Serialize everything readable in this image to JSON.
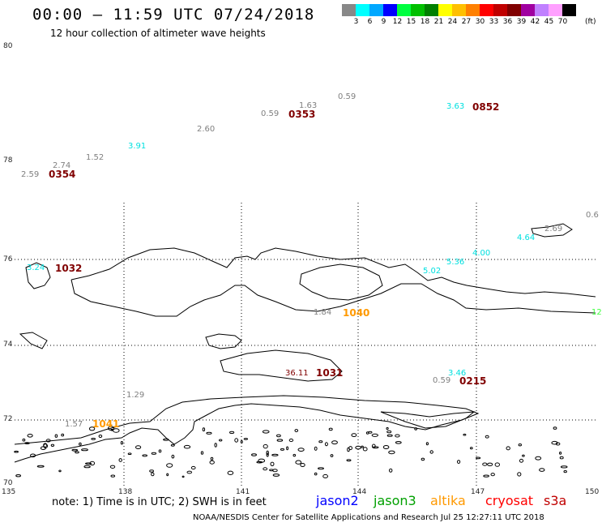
{
  "header": {
    "title": "00:00 – 11:59 UTC 07/24/2018",
    "subtitle": "12 hour collection of altimeter wave heights"
  },
  "scale": {
    "colors": [
      "#888888",
      "#00ffff",
      "#00a8ff",
      "#0000ff",
      "#00ff40",
      "#00c000",
      "#008000",
      "#ffff00",
      "#ffc000",
      "#ff8000",
      "#ff0000",
      "#c00000",
      "#800000",
      "#a000a0",
      "#c080ff",
      "#ffa0ff",
      "#000000"
    ],
    "labels": [
      "3",
      "6",
      "9",
      "12",
      "15",
      "18",
      "21",
      "24",
      "27",
      "30",
      "33",
      "36",
      "39",
      "42",
      "45",
      "70"
    ],
    "unit": "(ft)"
  },
  "axes": {
    "lat_labels": [
      "80",
      "78",
      "76",
      "74",
      "72",
      "70"
    ],
    "lon_labels": [
      "135",
      "138",
      "141",
      "144",
      "147",
      "150"
    ]
  },
  "observations": [
    {
      "value": "2.59",
      "color": "#808080"
    },
    {
      "value": "2.74",
      "color": "#808080"
    },
    {
      "value": "1.52",
      "color": "#808080"
    },
    {
      "value": "3.91",
      "color": "#00e0e0"
    },
    {
      "value": "2.60",
      "color": "#808080"
    },
    {
      "value": "0.59",
      "color": "#808080"
    },
    {
      "value": "1.63",
      "color": "#808080"
    },
    {
      "value": "0.59",
      "color": "#808080"
    },
    {
      "value": "3.63",
      "color": "#00e0e0"
    },
    {
      "value": "0.6",
      "color": "#808080"
    },
    {
      "value": "4.64",
      "color": "#00e0e0"
    },
    {
      "value": "2.69",
      "color": "#808080"
    },
    {
      "value": "4.00",
      "color": "#00e0e0"
    },
    {
      "value": "5.36",
      "color": "#00e0e0"
    },
    {
      "value": "5.02",
      "color": "#00e0e0"
    },
    {
      "value": "3.24",
      "color": "#00e0e0"
    },
    {
      "value": "1.84",
      "color": "#808080"
    },
    {
      "value": "12",
      "color": "#40ff40"
    },
    {
      "value": "36.11",
      "color": "#800000"
    },
    {
      "value": "3.46",
      "color": "#00e0e0"
    },
    {
      "value": "0.59",
      "color": "#808080"
    },
    {
      "value": "1.29",
      "color": "#808080"
    },
    {
      "value": "1.57",
      "color": "#808080"
    }
  ],
  "times": [
    {
      "value": "0354",
      "color": "#800000"
    },
    {
      "value": "0353",
      "color": "#800000"
    },
    {
      "value": "0852",
      "color": "#800000"
    },
    {
      "value": "1032",
      "color": "#800000"
    },
    {
      "value": "1040",
      "color": "#ff9900"
    },
    {
      "value": "1031",
      "color": "#800000"
    },
    {
      "value": "0215",
      "color": "#800000"
    },
    {
      "value": "1041",
      "color": "#ff9900"
    }
  ],
  "footer": {
    "note": "note:  1) Time is in UTC;  2) SWH is in feet",
    "satellites": [
      {
        "name": "jason2",
        "color": "#0000ff"
      },
      {
        "name": "jason3",
        "color": "#00a000"
      },
      {
        "name": "altika",
        "color": "#ff9900"
      },
      {
        "name": "cryosat",
        "color": "#ff0000"
      },
      {
        "name": "s3a",
        "color": "#c00000"
      }
    ],
    "credit": "NOAA/NESDIS Center for Satellite Applications and Research     Jul 25 12:27:11 UTC 2018"
  }
}
